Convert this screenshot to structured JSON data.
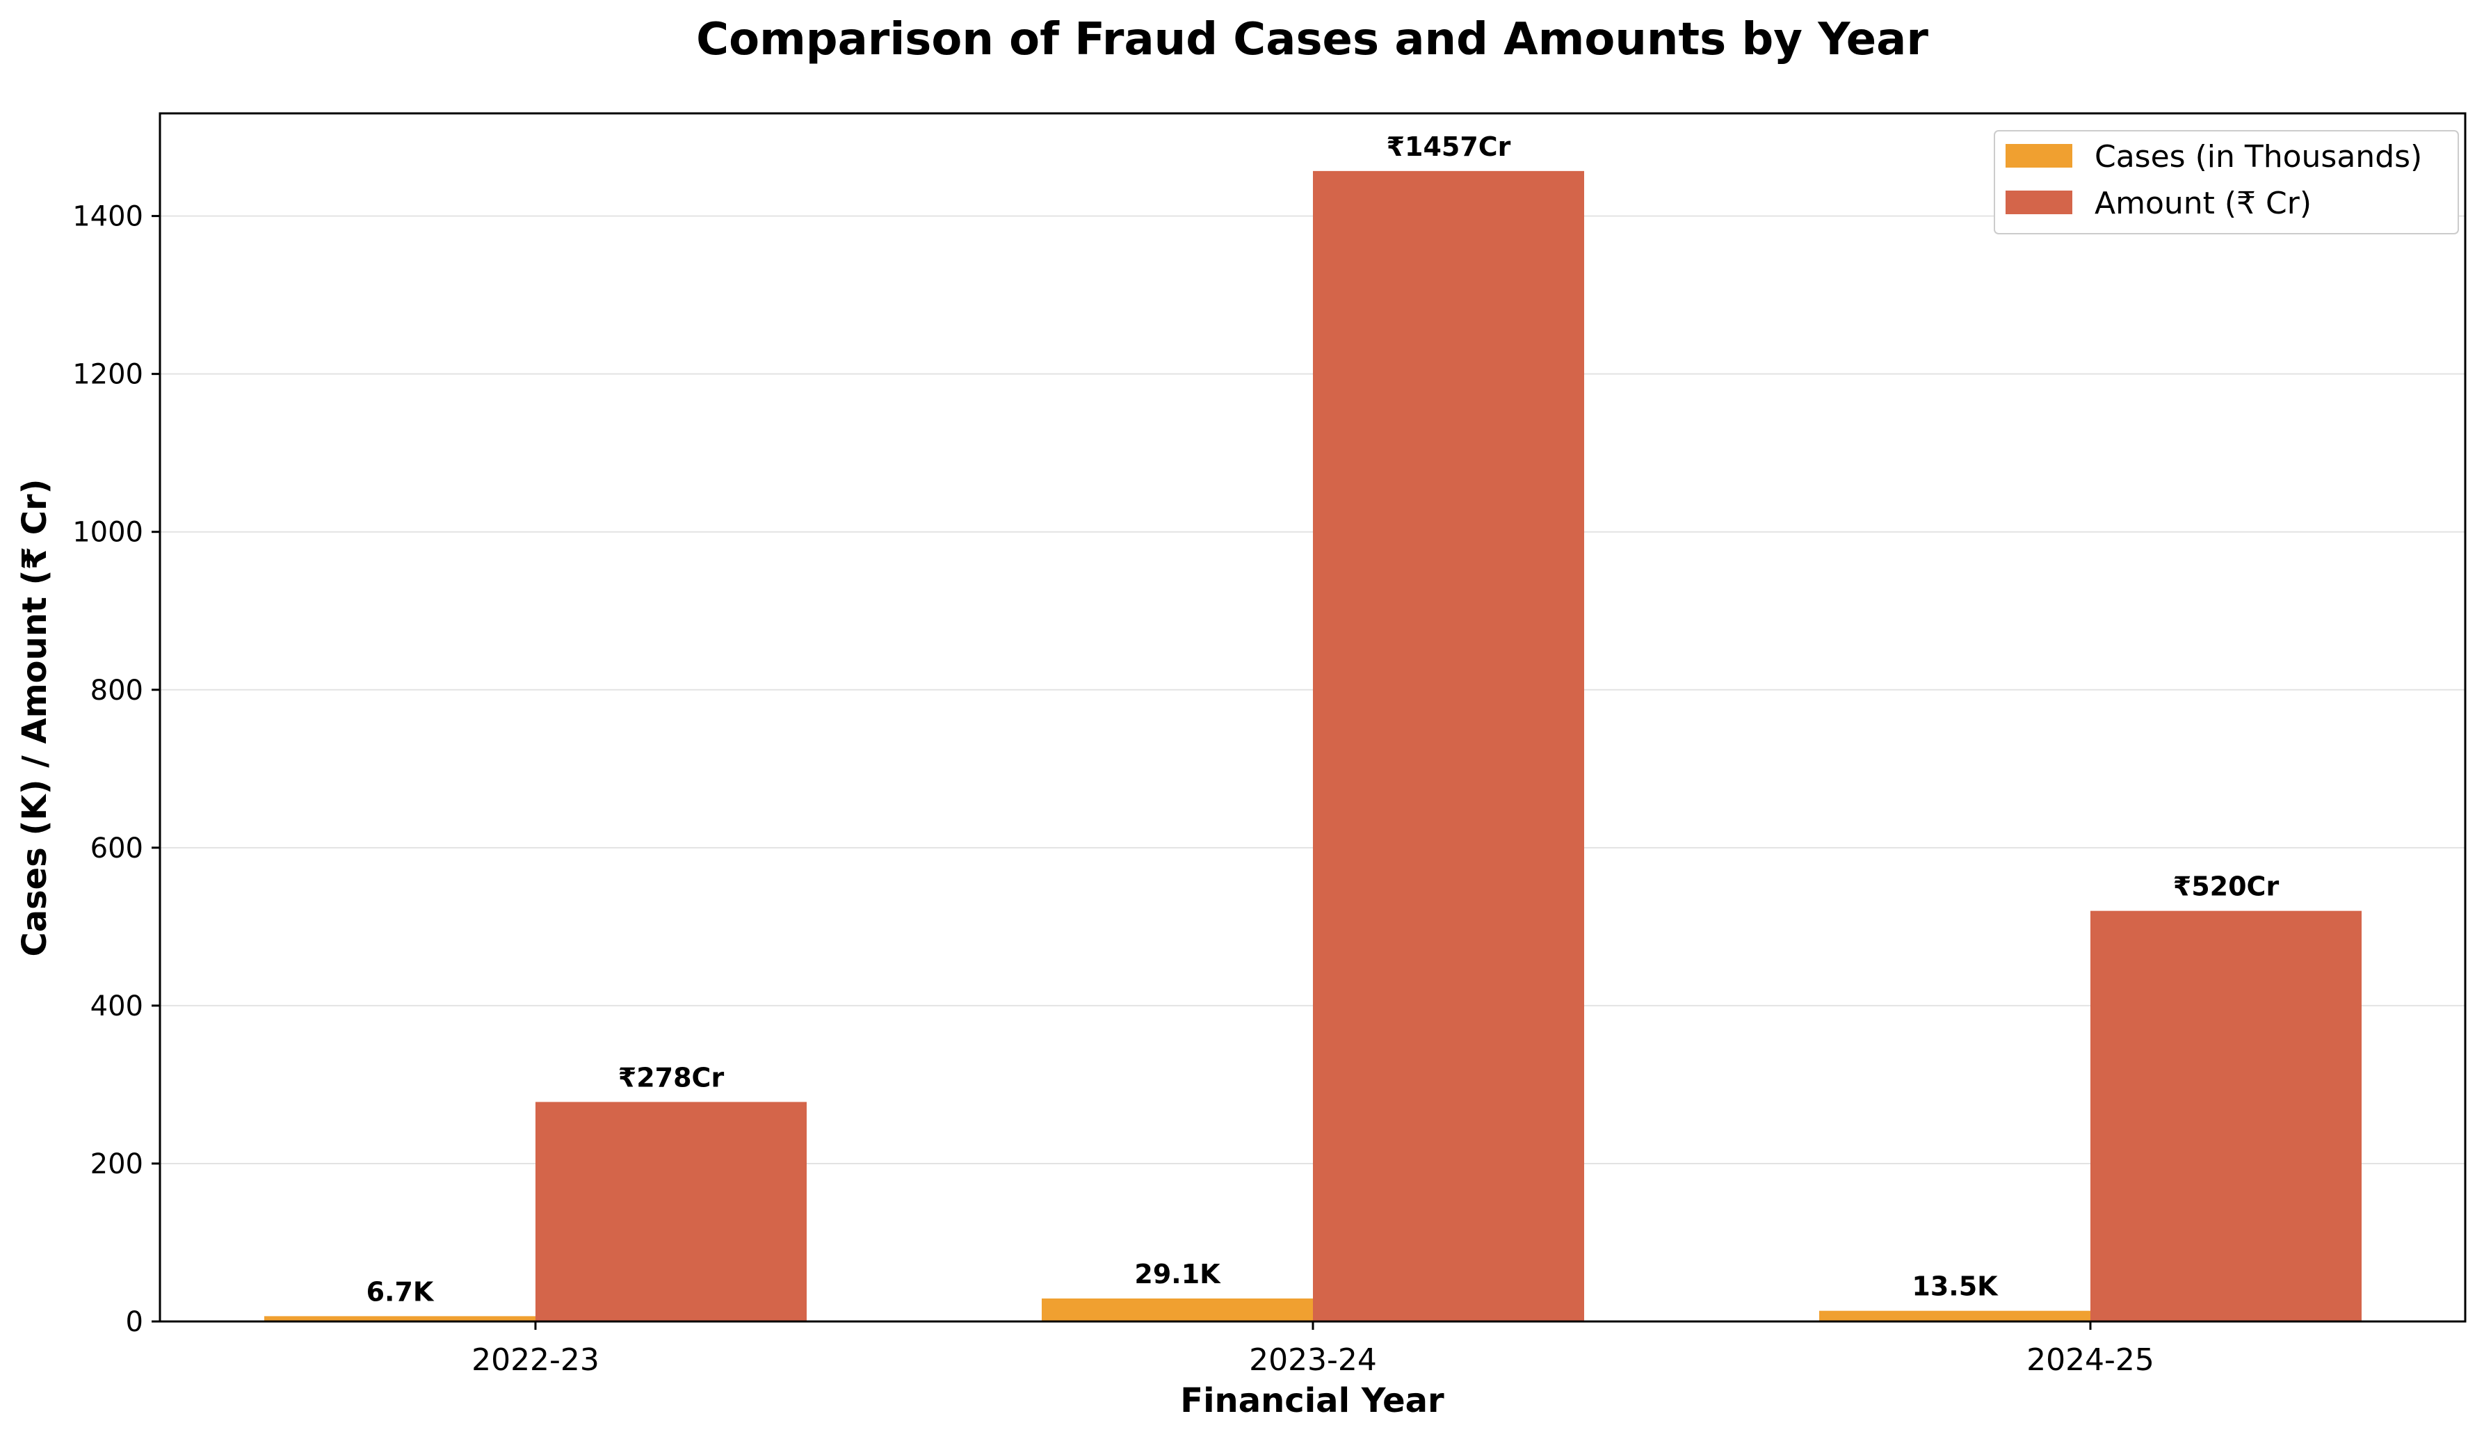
{
  "chart_data": {
    "type": "bar",
    "title": "Comparison of Fraud Cases and Amounts by Year",
    "xlabel": "Financial Year",
    "ylabel": "Cases (K) / Amount (₹ Cr)",
    "categories": [
      "2022-23",
      "2023-24",
      "2024-25"
    ],
    "series": [
      {
        "name": "Cases (in Thousands)",
        "color": "#F0A030",
        "values": [
          6.7,
          29.1,
          13.5
        ],
        "data_labels": [
          "6.7K",
          "29.1K",
          "13.5K"
        ]
      },
      {
        "name": "Amount (₹ Cr)",
        "color": "#D4654A",
        "values": [
          278,
          1457,
          520
        ],
        "data_labels": [
          "₹278Cr",
          "₹1457Cr",
          "₹520Cr"
        ]
      }
    ],
    "ylim": [
      0,
      1530
    ],
    "yticks": [
      0,
      200,
      400,
      600,
      800,
      1000,
      1200,
      1400
    ],
    "grid": "y",
    "legend_position": "top-right"
  }
}
